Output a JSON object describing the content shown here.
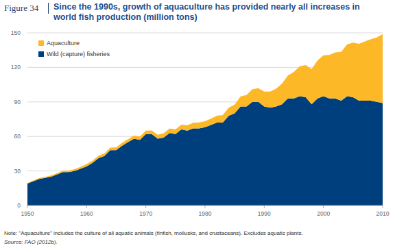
{
  "chart_data": {
    "type": "area",
    "stacked": true,
    "figure_label": "Figure 34",
    "title": "Since the 1990s, growth of aquaculture has provided nearly all increases in world fish production (million tons)",
    "note": "Note: \"Aquaculture\" includes the culture of all aquatic animals (finfish, mollusks, and crustaceans). Excludes aquatic plants.",
    "source": "Source: FAO (2012b).",
    "x": [
      1950,
      1951,
      1952,
      1953,
      1954,
      1955,
      1956,
      1957,
      1958,
      1959,
      1960,
      1961,
      1962,
      1963,
      1964,
      1965,
      1966,
      1967,
      1968,
      1969,
      1970,
      1971,
      1972,
      1973,
      1974,
      1975,
      1976,
      1977,
      1978,
      1979,
      1980,
      1981,
      1982,
      1983,
      1984,
      1985,
      1986,
      1987,
      1988,
      1989,
      1990,
      1991,
      1992,
      1993,
      1994,
      1995,
      1996,
      1997,
      1998,
      1999,
      2000,
      2001,
      2002,
      2003,
      2004,
      2005,
      2006,
      2007,
      2008,
      2009,
      2010
    ],
    "series": [
      {
        "name": "Wild (capture) fisheries",
        "color": "#003f7d",
        "values": [
          19,
          21,
          23,
          24,
          25,
          27,
          29,
          29,
          30,
          32,
          34,
          37,
          41,
          43,
          48,
          48,
          52,
          55,
          58,
          57,
          62,
          62,
          58,
          59,
          63,
          62,
          66,
          65,
          67,
          67,
          68,
          70,
          72,
          72,
          78,
          80,
          86,
          86,
          90,
          90,
          86,
          85,
          86,
          88,
          93,
          93,
          95,
          94,
          88,
          93,
          95,
          93,
          93,
          91,
          95,
          94,
          91,
          91,
          91,
          90,
          89
        ]
      },
      {
        "name": "Aquaculture",
        "color": "#fdb827",
        "values": [
          0.6,
          0.7,
          0.8,
          0.9,
          1.0,
          1.1,
          1.2,
          1.3,
          1.5,
          1.7,
          2.0,
          2.0,
          2.1,
          2.2,
          2.3,
          2.4,
          2.5,
          2.6,
          2.7,
          2.8,
          3.0,
          3.2,
          3.4,
          3.6,
          3.8,
          4.0,
          4.3,
          4.6,
          4.9,
          5.1,
          5.2,
          5.5,
          6.0,
          6.5,
          7.0,
          7.7,
          8.8,
          10.0,
          11.0,
          12.0,
          13.0,
          14.0,
          15.5,
          18.0,
          20.0,
          23.0,
          26.0,
          28.0,
          30.5,
          33.0,
          35.5,
          37.8,
          40.0,
          42.5,
          45.0,
          47.5,
          49.5,
          51.5,
          53.5,
          56.0,
          59.9
        ]
      }
    ],
    "xlim": [
      1950,
      2010
    ],
    "xticks": [
      1950,
      1960,
      1970,
      1980,
      1990,
      2000,
      2010
    ],
    "ylim": [
      0,
      150
    ],
    "yticks": [
      0,
      30,
      60,
      90,
      120,
      150
    ],
    "grid": true,
    "legend": "top-left"
  }
}
